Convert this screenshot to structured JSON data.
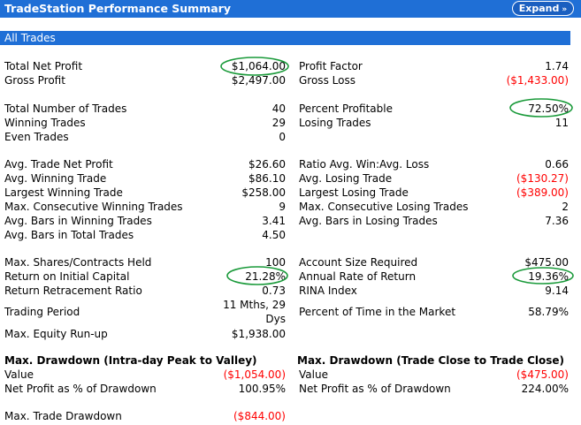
{
  "header": {
    "title": "TradeStation Performance Summary",
    "expand_label": "Expand",
    "expand_icon": "chevron-double-down-icon"
  },
  "section": {
    "title": "All Trades"
  },
  "left": {
    "total_net_profit": {
      "label": "Total Net Profit",
      "value": "$1,064.00"
    },
    "gross_profit": {
      "label": "Gross Profit",
      "value": "$2,497.00"
    },
    "total_trades": {
      "label": "Total Number of Trades",
      "value": "40"
    },
    "winning_trades": {
      "label": "Winning Trades",
      "value": "29"
    },
    "even_trades": {
      "label": "Even Trades",
      "value": "0"
    },
    "avg_trade_net_profit": {
      "label": "Avg. Trade Net Profit",
      "value": "$26.60"
    },
    "avg_winning_trade": {
      "label": "Avg. Winning Trade",
      "value": "$86.10"
    },
    "largest_winning_trade": {
      "label": "Largest Winning Trade",
      "value": "$258.00"
    },
    "max_consec_winning": {
      "label": "Max. Consecutive Winning Trades",
      "value": "9"
    },
    "avg_bars_winning": {
      "label": "Avg. Bars in Winning Trades",
      "value": "3.41"
    },
    "avg_bars_total": {
      "label": "Avg. Bars in Total Trades",
      "value": "4.50"
    },
    "max_shares_held": {
      "label": "Max. Shares/Contracts Held",
      "value": "100"
    },
    "return_initial_capital": {
      "label": "Return on Initial Capital",
      "value": "21.28%"
    },
    "return_retracement": {
      "label": "Return Retracement Ratio",
      "value": "0.73"
    },
    "trading_period": {
      "label": "Trading Period",
      "value_line1": "11 Mths, 29",
      "value_line2": "Dys"
    },
    "max_equity_runup": {
      "label": "Max. Equity Run-up",
      "value": "$1,938.00"
    }
  },
  "right": {
    "profit_factor": {
      "label": "Profit Factor",
      "value": "1.74"
    },
    "gross_loss": {
      "label": "Gross Loss",
      "value": "($1,433.00)"
    },
    "percent_profitable": {
      "label": "Percent Profitable",
      "value": "72.50%"
    },
    "losing_trades": {
      "label": "Losing Trades",
      "value": "11"
    },
    "ratio_avg_win_loss": {
      "label": "Ratio Avg. Win:Avg. Loss",
      "value": "0.66"
    },
    "avg_losing_trade": {
      "label": "Avg. Losing Trade",
      "value": "($130.27)"
    },
    "largest_losing_trade": {
      "label": "Largest Losing Trade",
      "value": "($389.00)"
    },
    "max_consec_losing": {
      "label": "Max. Consecutive Losing Trades",
      "value": "2"
    },
    "avg_bars_losing": {
      "label": "Avg. Bars in Losing Trades",
      "value": "7.36"
    },
    "account_size_required": {
      "label": "Account Size Required",
      "value": "$475.00"
    },
    "annual_rate_return": {
      "label": "Annual Rate of Return",
      "value": "19.36%"
    },
    "rina_index": {
      "label": "RINA Index",
      "value": "9.14"
    },
    "percent_time_market": {
      "label": "Percent of Time in the Market",
      "value": "58.79%"
    }
  },
  "drawdown_intraday": {
    "title": "Max. Drawdown (Intra-day Peak to Valley)",
    "value_label": "Value",
    "value": "($1,054.00)",
    "net_profit_pct_label": "Net Profit as % of Drawdown",
    "net_profit_pct": "100.95%",
    "max_trade_drawdown_label": "Max. Trade Drawdown",
    "max_trade_drawdown": "($844.00)"
  },
  "drawdown_close": {
    "title": "Max. Drawdown (Trade Close to Trade Close)",
    "value_label": "Value",
    "value": "($475.00)",
    "net_profit_pct_label": "Net Profit as % of Drawdown",
    "net_profit_pct": "224.00%"
  },
  "colors": {
    "header_blue": "#1f6fd6",
    "negative_red": "#ff0000",
    "annotation_green": "#1a9a3a"
  }
}
